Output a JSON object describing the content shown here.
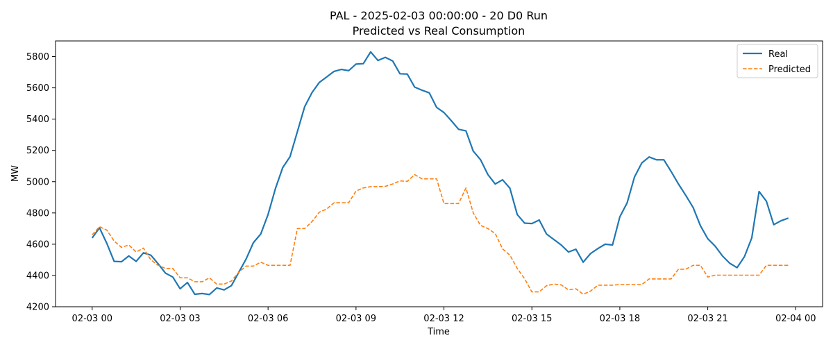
{
  "chart_data": {
    "type": "line",
    "title": "PAL - 2025-02-03 00:00:00 - 20 D0 Run",
    "subtitle": "Predicted vs Real Consumption",
    "xlabel": "Time",
    "ylabel": "MW",
    "x_ticks": [
      "02-03 00",
      "02-03 03",
      "02-03 06",
      "02-03 09",
      "02-03 12",
      "02-03 15",
      "02-03 18",
      "02-03 21",
      "02-04 00"
    ],
    "y_ticks": [
      4200,
      4400,
      4600,
      4800,
      5000,
      5200,
      5400,
      5600,
      5800
    ],
    "ylim": [
      4200,
      5900
    ],
    "xlim": [
      "2025-02-02 22:45",
      "2025-02-04 00:55"
    ],
    "legend_position": "top-right",
    "grid": false,
    "x_start": "2025-02-03 00:00",
    "x_step_minutes": 15,
    "series": [
      {
        "name": "Real",
        "color": "#1f77b4",
        "style": "solid",
        "values": [
          4640,
          4705,
          4605,
          4490,
          4488,
          4525,
          4490,
          4545,
          4530,
          4475,
          4415,
          4390,
          4315,
          4355,
          4280,
          4285,
          4278,
          4320,
          4308,
          4335,
          4420,
          4505,
          4610,
          4665,
          4790,
          4955,
          5090,
          5160,
          5320,
          5480,
          5570,
          5635,
          5670,
          5705,
          5718,
          5710,
          5752,
          5755,
          5830,
          5775,
          5795,
          5772,
          5690,
          5688,
          5605,
          5585,
          5568,
          5475,
          5442,
          5390,
          5335,
          5325,
          5195,
          5140,
          5045,
          4985,
          5012,
          4958,
          4790,
          4735,
          4732,
          4755,
          4665,
          4630,
          4595,
          4550,
          4568,
          4485,
          4540,
          4572,
          4600,
          4595,
          4775,
          4865,
          5030,
          5120,
          5158,
          5140,
          5140,
          5065,
          4985,
          4912,
          4835,
          4718,
          4635,
          4588,
          4525,
          4478,
          4450,
          4520,
          4640,
          4937,
          4875,
          4725,
          4750,
          4767
        ]
      },
      {
        "name": "Predicted",
        "color": "#ff7f0e",
        "style": "dashed",
        "values": [
          4660,
          4712,
          4690,
          4620,
          4580,
          4595,
          4550,
          4575,
          4500,
          4465,
          4445,
          4445,
          4385,
          4385,
          4360,
          4360,
          4385,
          4345,
          4345,
          4365,
          4420,
          4460,
          4460,
          4485,
          4465,
          4465,
          4465,
          4465,
          4700,
          4700,
          4745,
          4805,
          4825,
          4865,
          4865,
          4865,
          4940,
          4960,
          4968,
          4968,
          4970,
          4985,
          5005,
          5002,
          5045,
          5018,
          5018,
          5018,
          4860,
          4860,
          4860,
          4960,
          4800,
          4720,
          4700,
          4668,
          4570,
          4530,
          4445,
          4380,
          4295,
          4295,
          4335,
          4345,
          4340,
          4308,
          4315,
          4280,
          4300,
          4338,
          4338,
          4338,
          4342,
          4342,
          4342,
          4342,
          4378,
          4378,
          4378,
          4378,
          4440,
          4440,
          4465,
          4465,
          4390,
          4402,
          4402,
          4402,
          4402,
          4402,
          4402,
          4402,
          4465,
          4465,
          4465,
          4465
        ]
      }
    ]
  }
}
